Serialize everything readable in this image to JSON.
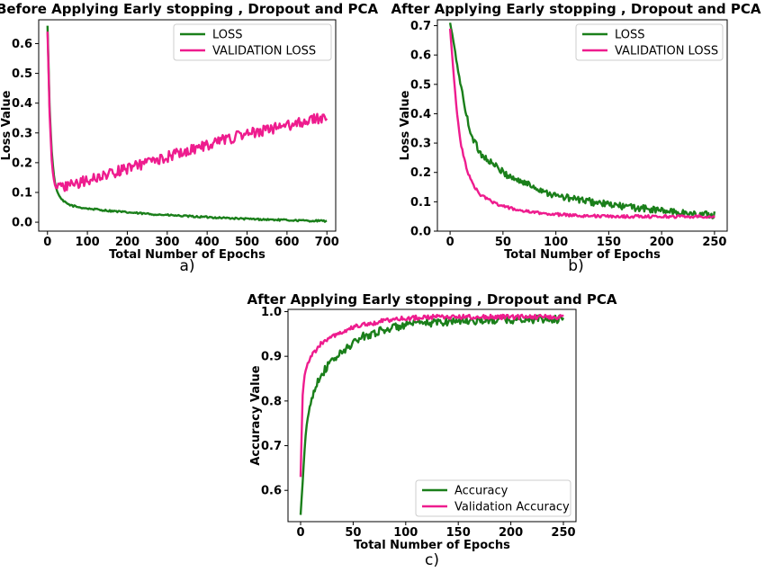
{
  "chart_data": [
    {
      "type": "line",
      "panel": "a",
      "caption": "a)",
      "title": "Before Applying Early stopping , Dropout and PCA",
      "xlabel": "Total Number of Epochs",
      "ylabel": "Loss Value",
      "xlim": [
        -22,
        722
      ],
      "ylim": [
        -0.03,
        0.68
      ],
      "xticks": [
        0,
        100,
        200,
        300,
        400,
        500,
        600,
        700
      ],
      "yticks": [
        0.0,
        0.1,
        0.2,
        0.3,
        0.4,
        0.5,
        0.6
      ],
      "ytick_labels": [
        "0.0",
        "0.1",
        "0.2",
        "0.3",
        "0.4",
        "0.5",
        "0.6"
      ],
      "legend_position": "top-right",
      "series": [
        {
          "name": "LOSS",
          "color": "#1a7f1a",
          "x": [
            0,
            5,
            10,
            15,
            20,
            30,
            40,
            50,
            60,
            80,
            100,
            150,
            200,
            250,
            300,
            350,
            400,
            450,
            500,
            550,
            600,
            650,
            700
          ],
          "y": [
            0.66,
            0.4,
            0.25,
            0.17,
            0.12,
            0.085,
            0.07,
            0.062,
            0.056,
            0.05,
            0.046,
            0.039,
            0.033,
            0.028,
            0.024,
            0.02,
            0.017,
            0.014,
            0.011,
            0.009,
            0.007,
            0.005,
            0.004
          ],
          "noise": 0.003
        },
        {
          "name": "VALIDATION LOSS",
          "color": "#ee1c8e",
          "x": [
            0,
            5,
            10,
            15,
            20,
            25,
            30,
            40,
            60,
            100,
            150,
            200,
            250,
            300,
            350,
            400,
            450,
            500,
            550,
            600,
            650,
            700
          ],
          "y": [
            0.64,
            0.38,
            0.22,
            0.15,
            0.125,
            0.12,
            0.118,
            0.118,
            0.125,
            0.14,
            0.16,
            0.18,
            0.2,
            0.22,
            0.24,
            0.26,
            0.28,
            0.295,
            0.31,
            0.325,
            0.34,
            0.355
          ],
          "noise": 0.018
        }
      ]
    },
    {
      "type": "line",
      "panel": "b",
      "caption": "b)",
      "title": "After Applying Early stopping , Dropout and PCA",
      "xlabel": "Total Number of Epochs",
      "ylabel": "Loss Value",
      "xlim": [
        -12,
        262
      ],
      "ylim": [
        0.0,
        0.72
      ],
      "xticks": [
        0,
        50,
        100,
        150,
        200,
        250
      ],
      "yticks": [
        0.0,
        0.1,
        0.2,
        0.3,
        0.4,
        0.5,
        0.6,
        0.7
      ],
      "ytick_labels": [
        "0.0",
        "0.1",
        "0.2",
        "0.3",
        "0.4",
        "0.5",
        "0.6",
        "0.7"
      ],
      "legend_position": "top-right",
      "series": [
        {
          "name": "LOSS",
          "color": "#1a7f1a",
          "x": [
            0,
            3,
            6,
            10,
            15,
            20,
            25,
            30,
            40,
            50,
            60,
            80,
            100,
            125,
            150,
            175,
            200,
            225,
            250
          ],
          "y": [
            0.71,
            0.65,
            0.58,
            0.5,
            0.4,
            0.33,
            0.29,
            0.26,
            0.23,
            0.2,
            0.18,
            0.15,
            0.12,
            0.105,
            0.09,
            0.08,
            0.07,
            0.06,
            0.055
          ],
          "noise": 0.012
        },
        {
          "name": "VALIDATION LOSS",
          "color": "#ee1c8e",
          "x": [
            0,
            3,
            6,
            10,
            15,
            20,
            25,
            30,
            40,
            50,
            60,
            75,
            100,
            125,
            150,
            175,
            200,
            225,
            250
          ],
          "y": [
            0.69,
            0.55,
            0.42,
            0.3,
            0.22,
            0.17,
            0.14,
            0.12,
            0.1,
            0.085,
            0.075,
            0.065,
            0.057,
            0.053,
            0.05,
            0.05,
            0.05,
            0.05,
            0.05
          ],
          "noise": 0.005
        }
      ]
    },
    {
      "type": "line",
      "panel": "c",
      "caption": "c)",
      "title": "After Applying Early stopping , Dropout and PCA",
      "xlabel": "Total Number of Epochs",
      "ylabel": "Accuracy Value",
      "xlim": [
        -12,
        262
      ],
      "ylim": [
        0.53,
        1.005
      ],
      "xticks": [
        0,
        50,
        100,
        150,
        200,
        250
      ],
      "yticks": [
        0.6,
        0.7,
        0.8,
        0.9,
        1.0
      ],
      "ytick_labels": [
        "0.6",
        "0.7",
        "0.8",
        "0.9",
        "1.0"
      ],
      "legend_position": "bottom-right",
      "series": [
        {
          "name": "Accuracy",
          "color": "#1a7f1a",
          "x": [
            0,
            2,
            4,
            6,
            8,
            10,
            15,
            20,
            30,
            40,
            50,
            60,
            80,
            100,
            125,
            150,
            175,
            200,
            225,
            250
          ],
          "y": [
            0.545,
            0.62,
            0.7,
            0.75,
            0.78,
            0.8,
            0.84,
            0.86,
            0.89,
            0.91,
            0.93,
            0.945,
            0.96,
            0.97,
            0.975,
            0.98,
            0.98,
            0.982,
            0.983,
            0.983
          ],
          "noise": 0.009
        },
        {
          "name": "Validation Accuracy",
          "color": "#ee1c8e",
          "x": [
            0,
            2,
            4,
            6,
            8,
            10,
            15,
            20,
            30,
            40,
            50,
            60,
            80,
            100,
            125,
            150,
            175,
            200,
            225,
            250
          ],
          "y": [
            0.63,
            0.82,
            0.86,
            0.88,
            0.89,
            0.9,
            0.915,
            0.93,
            0.945,
            0.955,
            0.965,
            0.97,
            0.98,
            0.985,
            0.988,
            0.988,
            0.988,
            0.988,
            0.988,
            0.988
          ],
          "noise": 0.005
        }
      ]
    }
  ]
}
